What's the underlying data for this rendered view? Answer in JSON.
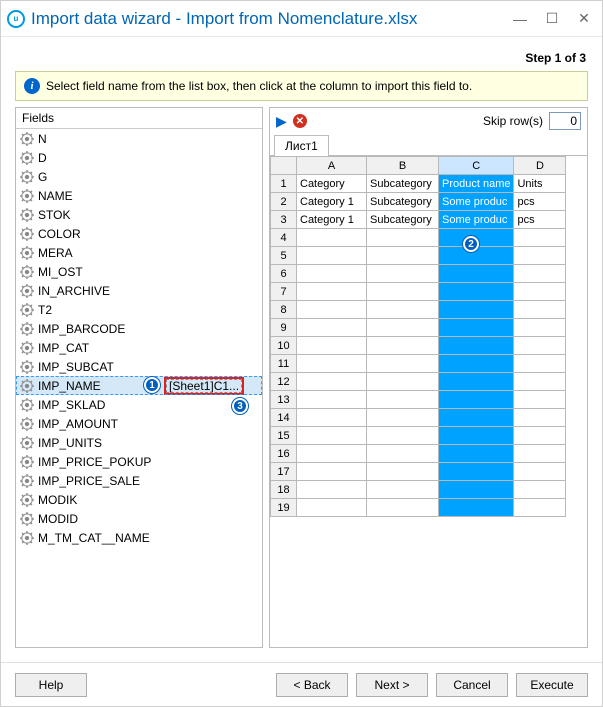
{
  "window": {
    "title": "Import data wizard - Import from Nomenclature.xlsx"
  },
  "step": "Step 1 of 3",
  "info": "Select field name from the list box, then click at the column to import this field to.",
  "fields_header": {
    "col1": "Fields",
    "col2": ""
  },
  "fields": [
    {
      "label": "N"
    },
    {
      "label": "D"
    },
    {
      "label": "G"
    },
    {
      "label": "NAME"
    },
    {
      "label": "STOK"
    },
    {
      "label": "COLOR"
    },
    {
      "label": "MERA"
    },
    {
      "label": "MI_OST"
    },
    {
      "label": "IN_ARCHIVE"
    },
    {
      "label": "T2"
    },
    {
      "label": "IMP_BARCODE"
    },
    {
      "label": "IMP_CAT"
    },
    {
      "label": "IMP_SUBCAT"
    },
    {
      "label": "IMP_NAME",
      "value": "[Sheet1]C1...",
      "selected": true
    },
    {
      "label": "IMP_SKLAD"
    },
    {
      "label": "IMP_AMOUNT"
    },
    {
      "label": "IMP_UNITS"
    },
    {
      "label": "IMP_PRICE_POKUP"
    },
    {
      "label": "IMP_PRICE_SALE"
    },
    {
      "label": "MODIK"
    },
    {
      "label": "MODID"
    },
    {
      "label": "M_TM_CAT__NAME"
    }
  ],
  "badges": {
    "b1": "1",
    "b2": "2",
    "b3": "3"
  },
  "skip": {
    "label": "Skip row(s)",
    "value": "0"
  },
  "tab": "Лист1",
  "sheet": {
    "cols": [
      "A",
      "B",
      "C",
      "D"
    ],
    "selected_col": 2,
    "rows": 19,
    "data": [
      [
        "Category",
        "Subcategory",
        "Product name",
        "Units"
      ],
      [
        "Category 1",
        "Subcategory",
        "Some produc",
        "pcs"
      ],
      [
        "Category 1",
        "Subcategory",
        "Some produc",
        "pcs"
      ]
    ]
  },
  "buttons": {
    "help": "Help",
    "back": "< Back",
    "next": "Next >",
    "cancel": "Cancel",
    "execute": "Execute"
  },
  "colors": {
    "accent": "#0066b3",
    "highlight": "#00a2ff",
    "info_bg": "#ffffe1",
    "badge": "#005fbf",
    "red_box": "#e02020"
  }
}
